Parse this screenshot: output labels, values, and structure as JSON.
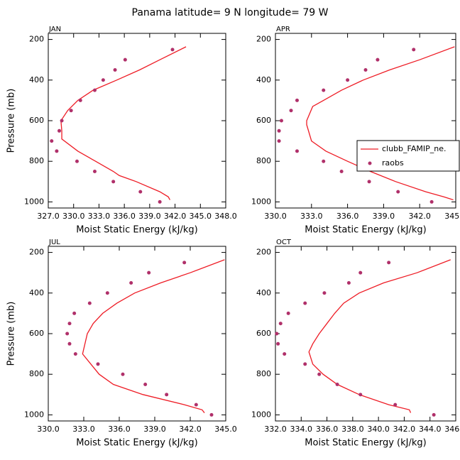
{
  "title": "Panama  latitude= 9 N longitude= 79 W",
  "chart_data": [
    {
      "type": "line",
      "panel_label": "JAN",
      "ylabel": "Pressure (mb)",
      "xlabel": "Moist Static Energy (kJ/kg)",
      "xlim": [
        327,
        348
      ],
      "xticks": [
        {
          "value": 327,
          "label": "327.0"
        },
        {
          "value": 330,
          "label": "330.0"
        },
        {
          "value": 333,
          "label": "333.0"
        },
        {
          "value": 336,
          "label": "336.0"
        },
        {
          "value": 339,
          "label": "339.0"
        },
        {
          "value": 342,
          "label": "342.0"
        },
        {
          "value": 345,
          "label": "345.0"
        },
        {
          "value": 348,
          "label": "348.0"
        }
      ],
      "ylim": [
        1030,
        170
      ],
      "yticks": [
        200,
        400,
        600,
        800,
        1000
      ],
      "series": [
        {
          "type": "line",
          "color": "#ee1c25",
          "x": [
            343.3,
            340.2,
            337.8,
            335.1,
            332.3,
            330.5,
            329.3,
            328.5,
            328.6,
            328.6,
            330.5,
            332.6,
            334.7,
            335.4,
            337.4,
            340.2,
            341.2,
            341.4
          ],
          "y": [
            236,
            300,
            350,
            400,
            450,
            500,
            550,
            600,
            650,
            690,
            750,
            800,
            850,
            870,
            900,
            950,
            975,
            990
          ]
        },
        {
          "type": "scatter",
          "color": "#b0306a",
          "x": [
            341.7,
            336.1,
            334.9,
            333.5,
            332.5,
            330.8,
            329.7,
            328.6,
            328.3,
            327.4,
            328.0,
            330.4,
            332.5,
            334.7,
            337.9,
            340.2
          ],
          "y": [
            250,
            300,
            350,
            400,
            450,
            500,
            550,
            600,
            650,
            700,
            750,
            800,
            850,
            900,
            950,
            1000
          ]
        }
      ]
    },
    {
      "type": "line",
      "panel_label": "APR",
      "xlabel": "Moist Static Energy (kJ/kg)",
      "legend": "right",
      "xlim": [
        330,
        345
      ],
      "xticks": [
        {
          "value": 330,
          "label": "330.0"
        },
        {
          "value": 333,
          "label": "333.0"
        },
        {
          "value": 336,
          "label": "336.0"
        },
        {
          "value": 339,
          "label": "339.0"
        },
        {
          "value": 342,
          "label": "342.0"
        },
        {
          "value": 345,
          "label": "345.0"
        }
      ],
      "ylim": [
        1030,
        170
      ],
      "yticks": [
        200,
        400,
        600,
        800,
        1000
      ],
      "series": [
        {
          "type": "line",
          "name": "clubb_FAMIP_ne.",
          "color": "#ee1c25",
          "x": [
            344.9,
            342.0,
            339.5,
            337.3,
            335.5,
            334.0,
            333.1,
            332.6,
            332.6,
            333.0,
            334.2,
            336.0,
            337.9,
            340.0,
            342.5,
            344.0,
            344.8
          ],
          "y": [
            236,
            300,
            350,
            400,
            450,
            500,
            530,
            600,
            620,
            700,
            750,
            800,
            850,
            900,
            950,
            975,
            990
          ]
        },
        {
          "type": "scatter",
          "name": "raobs",
          "color": "#b0306a",
          "x": [
            341.5,
            338.5,
            337.5,
            336.0,
            334.0,
            331.8,
            331.3,
            330.5,
            330.3,
            330.3,
            331.8,
            334.0,
            335.5,
            337.8,
            340.2,
            343.0
          ],
          "y": [
            250,
            300,
            350,
            400,
            450,
            500,
            550,
            600,
            650,
            700,
            750,
            800,
            850,
            900,
            950,
            1000
          ]
        }
      ]
    },
    {
      "type": "line",
      "panel_label": "JUL",
      "ylabel": "Pressure (mb)",
      "xlabel": "Moist Static Energy (kJ/kg)",
      "xlim": [
        330,
        345
      ],
      "xticks": [
        {
          "value": 330,
          "label": "330.0"
        },
        {
          "value": 333,
          "label": "333.0"
        },
        {
          "value": 336,
          "label": "336.0"
        },
        {
          "value": 339,
          "label": "339.0"
        },
        {
          "value": 342,
          "label": "342.0"
        },
        {
          "value": 345,
          "label": "345.0"
        }
      ],
      "ylim": [
        1030,
        170
      ],
      "yticks": [
        200,
        400,
        600,
        800,
        1000
      ],
      "series": [
        {
          "type": "line",
          "color": "#ee1c25",
          "x": [
            344.9,
            342.0,
            339.5,
            337.3,
            335.8,
            334.6,
            333.8,
            333.3,
            332.9,
            333.6,
            334.3,
            335.5,
            338.0,
            341.5,
            343.0,
            343.2
          ],
          "y": [
            236,
            300,
            350,
            400,
            450,
            500,
            550,
            600,
            700,
            750,
            800,
            850,
            900,
            950,
            975,
            990
          ]
        },
        {
          "type": "scatter",
          "color": "#b0306a",
          "x": [
            341.5,
            338.5,
            337.0,
            335.0,
            333.5,
            332.2,
            331.8,
            331.6,
            331.8,
            332.3,
            334.2,
            336.3,
            338.2,
            340.0,
            342.5,
            343.8
          ],
          "y": [
            250,
            300,
            350,
            400,
            450,
            500,
            550,
            600,
            650,
            700,
            750,
            800,
            850,
            900,
            950,
            1000
          ]
        }
      ]
    },
    {
      "type": "line",
      "panel_label": "OCT",
      "xlabel": "Moist Static Energy (kJ/kg)",
      "xlim": [
        332,
        346
      ],
      "xticks": [
        {
          "value": 332,
          "label": "332.0"
        },
        {
          "value": 334,
          "label": "334.0"
        },
        {
          "value": 336,
          "label": "336.0"
        },
        {
          "value": 338,
          "label": "338.0"
        },
        {
          "value": 340,
          "label": "340.0"
        },
        {
          "value": 342,
          "label": "342.0"
        },
        {
          "value": 344,
          "label": "344.0"
        },
        {
          "value": 346,
          "label": "346.0"
        }
      ],
      "ylim": [
        1030,
        170
      ],
      "yticks": [
        200,
        400,
        600,
        800,
        1000
      ],
      "series": [
        {
          "type": "line",
          "color": "#ee1c25",
          "x": [
            345.6,
            343.0,
            340.4,
            338.5,
            337.3,
            336.6,
            336.0,
            335.4,
            334.9,
            334.6,
            334.9,
            335.7,
            336.8,
            338.5,
            340.8,
            342.4,
            342.5
          ],
          "y": [
            236,
            300,
            350,
            400,
            450,
            500,
            550,
            600,
            650,
            690,
            750,
            800,
            850,
            900,
            950,
            975,
            990
          ]
        },
        {
          "type": "scatter",
          "color": "#b0306a",
          "x": [
            340.8,
            338.6,
            337.7,
            335.8,
            334.3,
            333.0,
            332.4,
            332.1,
            332.2,
            332.7,
            334.3,
            335.4,
            336.8,
            338.6,
            341.3,
            344.3
          ],
          "y": [
            250,
            300,
            350,
            400,
            450,
            500,
            550,
            600,
            650,
            700,
            750,
            800,
            850,
            900,
            950,
            1000
          ]
        }
      ]
    }
  ]
}
